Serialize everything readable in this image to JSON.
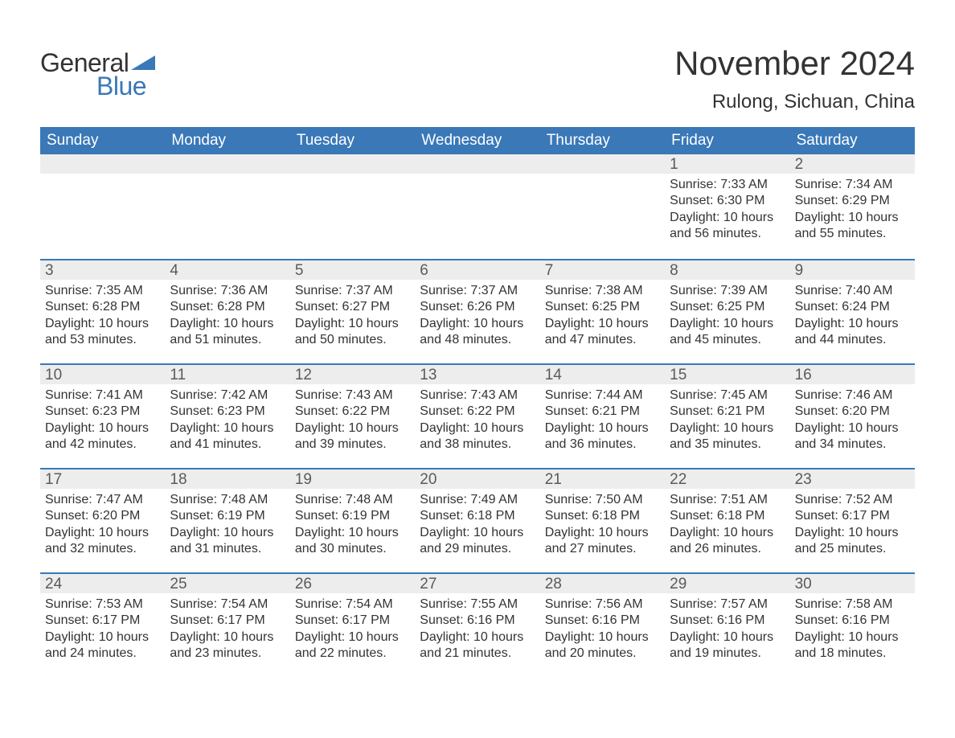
{
  "brand": {
    "word1": "General",
    "word2": "Blue",
    "logo_color": "#3a78b8",
    "text_color": "#333333"
  },
  "header": {
    "month_title": "November 2024",
    "location": "Rulong, Sichuan, China"
  },
  "styling": {
    "page_bg": "#ffffff",
    "header_bar_bg": "#3a78b8",
    "header_bar_text": "#ffffff",
    "daynum_bg": "#ededed",
    "daynum_text": "#5a5a5a",
    "body_text": "#333333",
    "row_divider": "#3a78b8",
    "title_fontsize": 42,
    "location_fontsize": 24,
    "dow_fontsize": 19,
    "daynum_fontsize": 19,
    "cell_fontsize": 16,
    "font_family": "Arial",
    "columns": 7,
    "cell_min_height": 130
  },
  "days_of_week": [
    "Sunday",
    "Monday",
    "Tuesday",
    "Wednesday",
    "Thursday",
    "Friday",
    "Saturday"
  ],
  "weeks": [
    [
      {
        "blank": true
      },
      {
        "blank": true
      },
      {
        "blank": true
      },
      {
        "blank": true
      },
      {
        "blank": true
      },
      {
        "day": "1",
        "sunrise": "Sunrise: 7:33 AM",
        "sunset": "Sunset: 6:30 PM",
        "daylight": "Daylight: 10 hours and 56 minutes."
      },
      {
        "day": "2",
        "sunrise": "Sunrise: 7:34 AM",
        "sunset": "Sunset: 6:29 PM",
        "daylight": "Daylight: 10 hours and 55 minutes."
      }
    ],
    [
      {
        "day": "3",
        "sunrise": "Sunrise: 7:35 AM",
        "sunset": "Sunset: 6:28 PM",
        "daylight": "Daylight: 10 hours and 53 minutes."
      },
      {
        "day": "4",
        "sunrise": "Sunrise: 7:36 AM",
        "sunset": "Sunset: 6:28 PM",
        "daylight": "Daylight: 10 hours and 51 minutes."
      },
      {
        "day": "5",
        "sunrise": "Sunrise: 7:37 AM",
        "sunset": "Sunset: 6:27 PM",
        "daylight": "Daylight: 10 hours and 50 minutes."
      },
      {
        "day": "6",
        "sunrise": "Sunrise: 7:37 AM",
        "sunset": "Sunset: 6:26 PM",
        "daylight": "Daylight: 10 hours and 48 minutes."
      },
      {
        "day": "7",
        "sunrise": "Sunrise: 7:38 AM",
        "sunset": "Sunset: 6:25 PM",
        "daylight": "Daylight: 10 hours and 47 minutes."
      },
      {
        "day": "8",
        "sunrise": "Sunrise: 7:39 AM",
        "sunset": "Sunset: 6:25 PM",
        "daylight": "Daylight: 10 hours and 45 minutes."
      },
      {
        "day": "9",
        "sunrise": "Sunrise: 7:40 AM",
        "sunset": "Sunset: 6:24 PM",
        "daylight": "Daylight: 10 hours and 44 minutes."
      }
    ],
    [
      {
        "day": "10",
        "sunrise": "Sunrise: 7:41 AM",
        "sunset": "Sunset: 6:23 PM",
        "daylight": "Daylight: 10 hours and 42 minutes."
      },
      {
        "day": "11",
        "sunrise": "Sunrise: 7:42 AM",
        "sunset": "Sunset: 6:23 PM",
        "daylight": "Daylight: 10 hours and 41 minutes."
      },
      {
        "day": "12",
        "sunrise": "Sunrise: 7:43 AM",
        "sunset": "Sunset: 6:22 PM",
        "daylight": "Daylight: 10 hours and 39 minutes."
      },
      {
        "day": "13",
        "sunrise": "Sunrise: 7:43 AM",
        "sunset": "Sunset: 6:22 PM",
        "daylight": "Daylight: 10 hours and 38 minutes."
      },
      {
        "day": "14",
        "sunrise": "Sunrise: 7:44 AM",
        "sunset": "Sunset: 6:21 PM",
        "daylight": "Daylight: 10 hours and 36 minutes."
      },
      {
        "day": "15",
        "sunrise": "Sunrise: 7:45 AM",
        "sunset": "Sunset: 6:21 PM",
        "daylight": "Daylight: 10 hours and 35 minutes."
      },
      {
        "day": "16",
        "sunrise": "Sunrise: 7:46 AM",
        "sunset": "Sunset: 6:20 PM",
        "daylight": "Daylight: 10 hours and 34 minutes."
      }
    ],
    [
      {
        "day": "17",
        "sunrise": "Sunrise: 7:47 AM",
        "sunset": "Sunset: 6:20 PM",
        "daylight": "Daylight: 10 hours and 32 minutes."
      },
      {
        "day": "18",
        "sunrise": "Sunrise: 7:48 AM",
        "sunset": "Sunset: 6:19 PM",
        "daylight": "Daylight: 10 hours and 31 minutes."
      },
      {
        "day": "19",
        "sunrise": "Sunrise: 7:48 AM",
        "sunset": "Sunset: 6:19 PM",
        "daylight": "Daylight: 10 hours and 30 minutes."
      },
      {
        "day": "20",
        "sunrise": "Sunrise: 7:49 AM",
        "sunset": "Sunset: 6:18 PM",
        "daylight": "Daylight: 10 hours and 29 minutes."
      },
      {
        "day": "21",
        "sunrise": "Sunrise: 7:50 AM",
        "sunset": "Sunset: 6:18 PM",
        "daylight": "Daylight: 10 hours and 27 minutes."
      },
      {
        "day": "22",
        "sunrise": "Sunrise: 7:51 AM",
        "sunset": "Sunset: 6:18 PM",
        "daylight": "Daylight: 10 hours and 26 minutes."
      },
      {
        "day": "23",
        "sunrise": "Sunrise: 7:52 AM",
        "sunset": "Sunset: 6:17 PM",
        "daylight": "Daylight: 10 hours and 25 minutes."
      }
    ],
    [
      {
        "day": "24",
        "sunrise": "Sunrise: 7:53 AM",
        "sunset": "Sunset: 6:17 PM",
        "daylight": "Daylight: 10 hours and 24 minutes."
      },
      {
        "day": "25",
        "sunrise": "Sunrise: 7:54 AM",
        "sunset": "Sunset: 6:17 PM",
        "daylight": "Daylight: 10 hours and 23 minutes."
      },
      {
        "day": "26",
        "sunrise": "Sunrise: 7:54 AM",
        "sunset": "Sunset: 6:17 PM",
        "daylight": "Daylight: 10 hours and 22 minutes."
      },
      {
        "day": "27",
        "sunrise": "Sunrise: 7:55 AM",
        "sunset": "Sunset: 6:16 PM",
        "daylight": "Daylight: 10 hours and 21 minutes."
      },
      {
        "day": "28",
        "sunrise": "Sunrise: 7:56 AM",
        "sunset": "Sunset: 6:16 PM",
        "daylight": "Daylight: 10 hours and 20 minutes."
      },
      {
        "day": "29",
        "sunrise": "Sunrise: 7:57 AM",
        "sunset": "Sunset: 6:16 PM",
        "daylight": "Daylight: 10 hours and 19 minutes."
      },
      {
        "day": "30",
        "sunrise": "Sunrise: 7:58 AM",
        "sunset": "Sunset: 6:16 PM",
        "daylight": "Daylight: 10 hours and 18 minutes."
      }
    ]
  ]
}
